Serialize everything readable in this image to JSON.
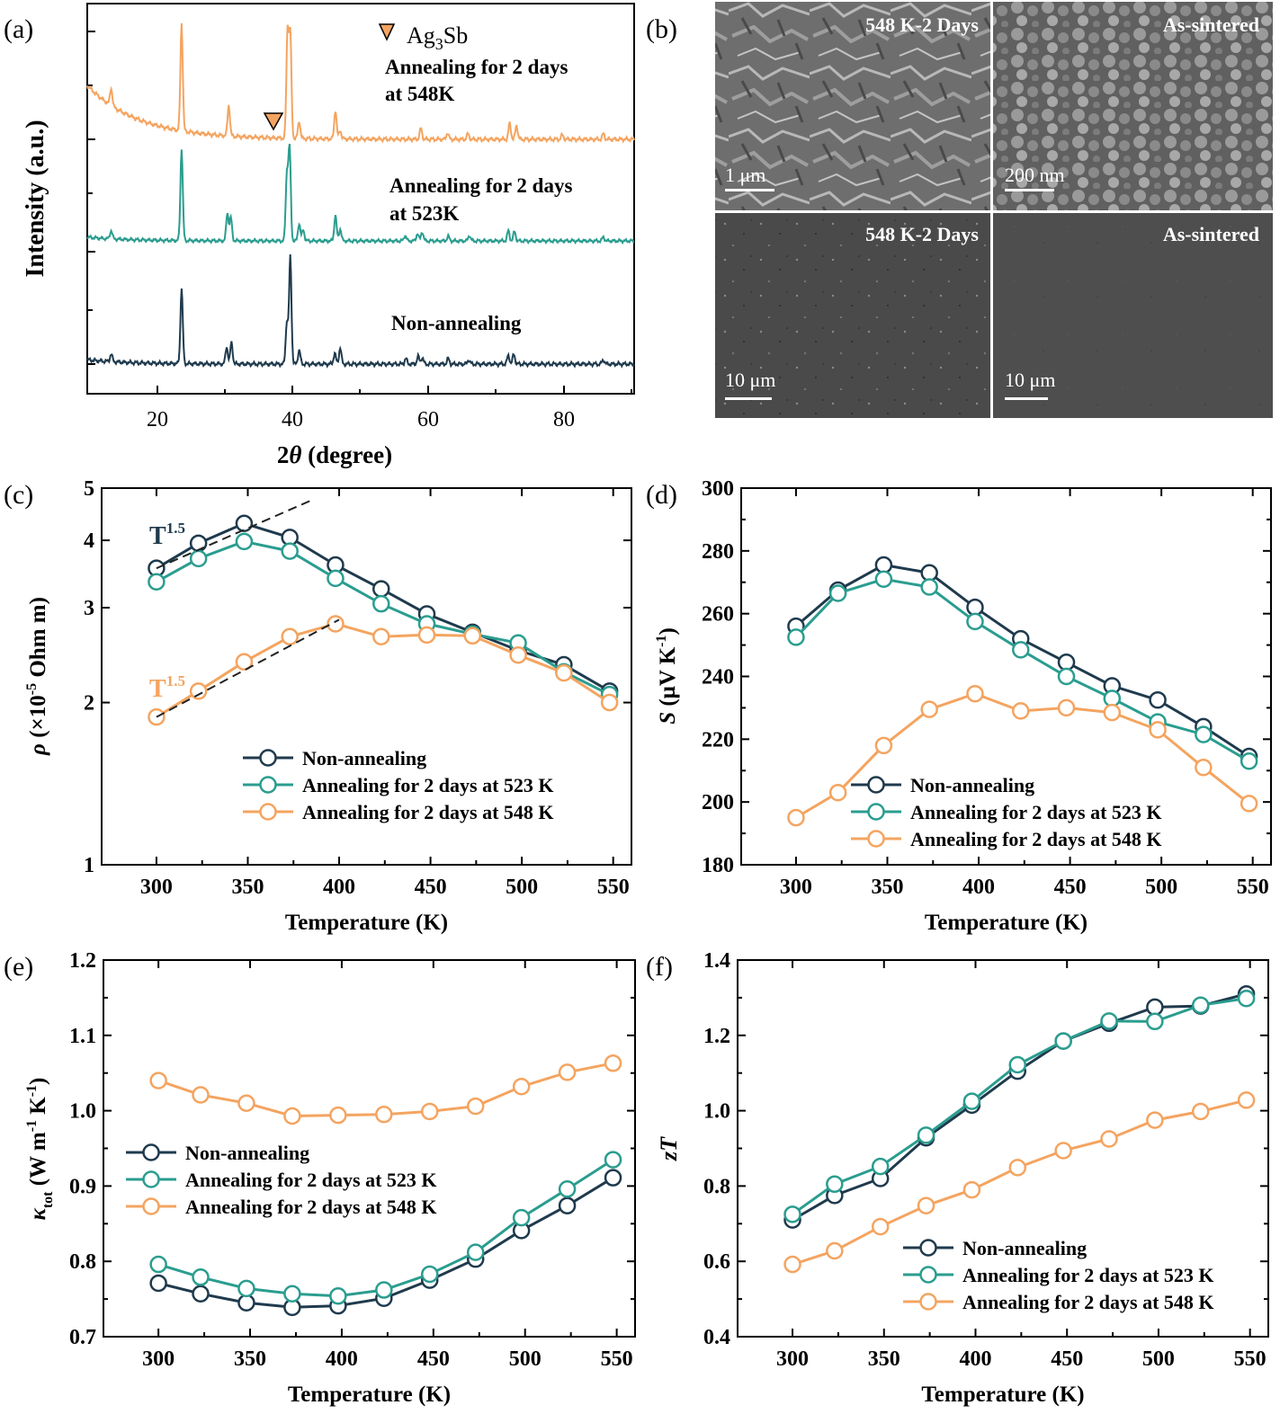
{
  "colors": {
    "non": "#1f3a4d",
    "a523": "#2a9d8f",
    "a548": "#f4a460"
  },
  "chart_data": [
    {
      "id": "a",
      "type": "line",
      "panel_letter": "(a)",
      "xlabel_prefix": "2",
      "xlabel_theta": "θ",
      "xlabel_suffix": " (degree)",
      "ylabel": "Intensity (a.u.)",
      "xlim": [
        10,
        90
      ],
      "xticks": [
        20,
        40,
        60,
        80
      ],
      "grid": false,
      "series": [
        {
          "color": "#f4a460",
          "peaks": [
            [
              13.5,
              0.16
            ],
            [
              23.8,
              1.0
            ],
            [
              30.7,
              0.29
            ],
            [
              39.3,
              1.0
            ],
            [
              39.7,
              0.96
            ],
            [
              41.0,
              0.16
            ],
            [
              46.3,
              0.27
            ],
            [
              47.0,
              0.08
            ],
            [
              58.8,
              0.1
            ],
            [
              62.7,
              0.06
            ],
            [
              65.7,
              0.05
            ],
            [
              71.8,
              0.15
            ],
            [
              72.8,
              0.13
            ],
            [
              79.5,
              0.04
            ],
            [
              85.5,
              0.05
            ]
          ]
        },
        {
          "color": "#2a9d8f",
          "peaks": [
            [
              13.5,
              0.09
            ],
            [
              23.8,
              1.0
            ],
            [
              30.5,
              0.3
            ],
            [
              31.0,
              0.25
            ],
            [
              39.2,
              0.72
            ],
            [
              39.6,
              1.0
            ],
            [
              41.0,
              0.19
            ],
            [
              41.6,
              0.12
            ],
            [
              46.3,
              0.28
            ],
            [
              47.0,
              0.13
            ],
            [
              56.5,
              0.06
            ],
            [
              58.3,
              0.08
            ],
            [
              59.0,
              0.1
            ],
            [
              62.8,
              0.05
            ],
            [
              65.9,
              0.06
            ],
            [
              71.6,
              0.11
            ],
            [
              72.5,
              0.1
            ],
            [
              85.5,
              0.04
            ]
          ]
        },
        {
          "color": "#1f3a4d",
          "peaks": [
            [
              13.5,
              0.07
            ],
            [
              23.8,
              0.7
            ],
            [
              30.4,
              0.16
            ],
            [
              31.1,
              0.2
            ],
            [
              39.2,
              0.4
            ],
            [
              39.7,
              1.0
            ],
            [
              41.0,
              0.13
            ],
            [
              46.2,
              0.1
            ],
            [
              47.0,
              0.15
            ],
            [
              56.6,
              0.05
            ],
            [
              58.4,
              0.07
            ],
            [
              59.0,
              0.06
            ],
            [
              62.8,
              0.05
            ],
            [
              65.8,
              0.04
            ],
            [
              71.6,
              0.08
            ],
            [
              72.4,
              0.09
            ],
            [
              85.5,
              0.04
            ]
          ]
        }
      ],
      "annotations": [
        {
          "text": "Annealing for 2 days",
          "line2": "at 548K"
        },
        {
          "text": "Annealing for 2 days",
          "line2": "at 523K"
        },
        {
          "text": "Non-annealing"
        }
      ],
      "legend_marker": {
        "label_base": "Ag",
        "label_sub": "3",
        "label_end": "Sb",
        "position_x": 37.3
      }
    },
    {
      "id": "c",
      "type": "line",
      "panel_letter": "(c)",
      "xlabel": "Temperature (K)",
      "ylabel_rho": "ρ",
      "ylabel_rest1": " (×10",
      "ylabel_sup": "-5",
      "ylabel_rest2": " Ohm m)",
      "yscale": "log",
      "xlim": [
        270,
        560
      ],
      "ylim": [
        1,
        5
      ],
      "xticks": [
        300,
        350,
        400,
        450,
        500,
        550
      ],
      "yticks": [
        1,
        2,
        3,
        4,
        5
      ],
      "x": [
        300,
        323,
        348,
        373,
        398,
        423,
        448,
        473,
        498,
        523,
        548
      ],
      "series": [
        {
          "name": "Non-annealing",
          "color": "#1f3a4d",
          "values": [
            3.55,
            3.95,
            4.3,
            4.05,
            3.6,
            3.25,
            2.92,
            2.7,
            2.5,
            2.35,
            2.1
          ]
        },
        {
          "name": "Annealing for 2 days at 523 K",
          "color": "#2a9d8f",
          "values": [
            3.35,
            3.7,
            3.98,
            3.82,
            3.4,
            3.05,
            2.8,
            2.68,
            2.58,
            2.28,
            2.07
          ]
        },
        {
          "name": "Annealing for 2 days at 548 K",
          "color": "#f4a460",
          "values": [
            1.88,
            2.1,
            2.38,
            2.65,
            2.8,
            2.65,
            2.67,
            2.66,
            2.45,
            2.27,
            2.0
          ]
        }
      ],
      "annotations": [
        {
          "text": "T",
          "sup": "1.5",
          "color": "#1f3a4d"
        },
        {
          "text": "T",
          "sup": "1.5",
          "color": "#f4a460"
        }
      ],
      "fit_lines": [
        {
          "x": [
            300,
            385
          ],
          "y": [
            3.55,
            4.75
          ]
        },
        {
          "x": [
            300,
            400
          ],
          "y": [
            1.88,
            2.85
          ]
        }
      ],
      "legend": "bottom-right"
    },
    {
      "id": "d",
      "type": "line",
      "panel_letter": "(d)",
      "xlabel": "Temperature (K)",
      "ylabel_S": "S",
      "ylabel_rest1": " (μV K",
      "ylabel_sup": "-1",
      "ylabel_rest2": ")",
      "xlim": [
        270,
        560
      ],
      "ylim": [
        180,
        300
      ],
      "xticks": [
        300,
        350,
        400,
        450,
        500,
        550
      ],
      "yticks": [
        180,
        200,
        220,
        240,
        260,
        280,
        300
      ],
      "x": [
        300,
        323,
        348,
        373,
        398,
        423,
        448,
        473,
        498,
        523,
        548
      ],
      "series": [
        {
          "name": "Non-annealing",
          "color": "#1f3a4d",
          "values": [
            256,
            267.5,
            275.5,
            273,
            262,
            252,
            244.5,
            237,
            232.5,
            224,
            214.5
          ]
        },
        {
          "name": "Annealing for 2 days at 523 K",
          "color": "#2a9d8f",
          "values": [
            252.5,
            266.5,
            271,
            268.5,
            257.5,
            248.5,
            240,
            233,
            225.5,
            221.5,
            213
          ]
        },
        {
          "name": "Annealing for 2 days at 548 K",
          "color": "#f4a460",
          "values": [
            195,
            203,
            218,
            229.5,
            234.5,
            229,
            230,
            228.5,
            223,
            211,
            199.5
          ]
        }
      ],
      "legend": "bottom-right"
    },
    {
      "id": "e",
      "type": "line",
      "panel_letter": "(e)",
      "xlabel": "Temperature (K)",
      "ylabel_kappa": "κ",
      "ylabel_sub": "tot",
      "ylabel_rest1": " (W m",
      "ylabel_sup1": "-1",
      "ylabel_rest2": " K",
      "ylabel_sup2": "-1",
      "ylabel_rest3": ")",
      "xlim": [
        270,
        560
      ],
      "ylim": [
        0.7,
        1.2
      ],
      "xticks": [
        300,
        350,
        400,
        450,
        500,
        550
      ],
      "yticks": [
        "0.7",
        "0.8",
        "0.9",
        "1.0",
        "1.1",
        "1.2"
      ],
      "x": [
        300,
        323,
        348,
        373,
        398,
        423,
        448,
        473,
        498,
        523,
        548
      ],
      "series": [
        {
          "name": "Non-annealing",
          "color": "#1f3a4d",
          "values": [
            0.771,
            0.757,
            0.745,
            0.739,
            0.741,
            0.751,
            0.775,
            0.803,
            0.841,
            0.874,
            0.911
          ]
        },
        {
          "name": "Annealing for 2 days at 523 K",
          "color": "#2a9d8f",
          "values": [
            0.796,
            0.779,
            0.764,
            0.757,
            0.754,
            0.762,
            0.783,
            0.812,
            0.858,
            0.896,
            0.935
          ]
        },
        {
          "name": "Annealing for 2 days at 548 K",
          "color": "#f4a460",
          "values": [
            1.04,
            1.021,
            1.01,
            0.993,
            0.994,
            0.995,
            0.999,
            1.006,
            1.032,
            1.051,
            1.063
          ]
        }
      ],
      "legend": "lower-left"
    },
    {
      "id": "f",
      "type": "line",
      "panel_letter": "(f)",
      "xlabel": "Temperature (K)",
      "ylabel": "zT",
      "xlim": [
        270,
        560
      ],
      "ylim": [
        0.4,
        1.4
      ],
      "xticks": [
        300,
        350,
        400,
        450,
        500,
        550
      ],
      "yticks": [
        "0.4",
        "0.6",
        "0.8",
        "1.0",
        "1.2",
        "1.4"
      ],
      "x": [
        300,
        323,
        348,
        373,
        398,
        423,
        448,
        473,
        498,
        523,
        548
      ],
      "series": [
        {
          "name": "Non-annealing",
          "color": "#1f3a4d",
          "values": [
            0.71,
            0.775,
            0.82,
            0.928,
            1.015,
            1.105,
            1.185,
            1.232,
            1.275,
            1.278,
            1.31
          ]
        },
        {
          "name": "Annealing for 2 days at 523 K",
          "color": "#2a9d8f",
          "values": [
            0.725,
            0.805,
            0.852,
            0.935,
            1.025,
            1.122,
            1.185,
            1.238,
            1.237,
            1.28,
            1.298
          ]
        },
        {
          "name": "Annealing for 2 days at 548 K",
          "color": "#f4a460",
          "values": [
            0.592,
            0.628,
            0.692,
            0.748,
            0.79,
            0.849,
            0.894,
            0.925,
            0.975,
            0.998,
            1.028
          ]
        }
      ],
      "legend": "bottom-right"
    }
  ],
  "sem": {
    "panel_letter": "(b)",
    "images": [
      {
        "label": "548 K-2 Days",
        "scale": "1 μm"
      },
      {
        "label": "As-sintered",
        "scale": "200 nm"
      },
      {
        "label": "548 K-2 Days",
        "scale": "10 μm"
      },
      {
        "label": "As-sintered",
        "scale": "10 μm"
      }
    ]
  }
}
